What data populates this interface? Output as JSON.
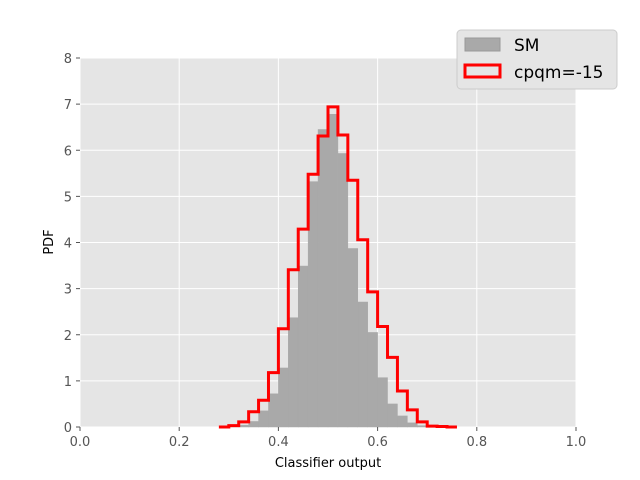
{
  "chart_data": {
    "type": "histogram",
    "xlabel": "Classifier output",
    "ylabel": "PDF",
    "xlim": [
      0.0,
      1.0
    ],
    "ylim": [
      0,
      8
    ],
    "x_ticks": [
      "0.0",
      "0.2",
      "0.4",
      "0.6",
      "0.8",
      "1.0"
    ],
    "y_ticks": [
      "0",
      "1",
      "2",
      "3",
      "4",
      "5",
      "6",
      "7",
      "8"
    ],
    "grid": true,
    "legend_position": "top-right",
    "bin_edges": [
      0.28,
      0.3,
      0.32,
      0.34,
      0.36,
      0.38,
      0.4,
      0.42,
      0.44,
      0.46,
      0.48,
      0.5,
      0.52,
      0.54,
      0.56,
      0.58,
      0.6,
      0.62,
      0.64,
      0.66,
      0.68,
      0.7,
      0.72,
      0.74,
      0.76
    ],
    "series": [
      {
        "name": "SM",
        "style": "filled",
        "color": "#a9a9a9",
        "values": [
          0.0,
          0.01,
          0.04,
          0.12,
          0.35,
          0.72,
          1.28,
          2.37,
          3.49,
          5.32,
          6.45,
          6.78,
          5.93,
          3.87,
          2.71,
          2.05,
          1.07,
          0.5,
          0.24,
          0.09,
          0.03,
          0.01,
          0.0,
          0.0
        ]
      },
      {
        "name": "cpqm=-15",
        "style": "step",
        "color": "#ff0000",
        "values": [
          0.0,
          0.03,
          0.11,
          0.33,
          0.58,
          1.18,
          2.13,
          3.41,
          4.29,
          5.48,
          6.31,
          6.94,
          6.33,
          5.35,
          4.06,
          2.93,
          2.18,
          1.51,
          0.78,
          0.37,
          0.11,
          0.02,
          0.01,
          0.0
        ]
      }
    ]
  }
}
